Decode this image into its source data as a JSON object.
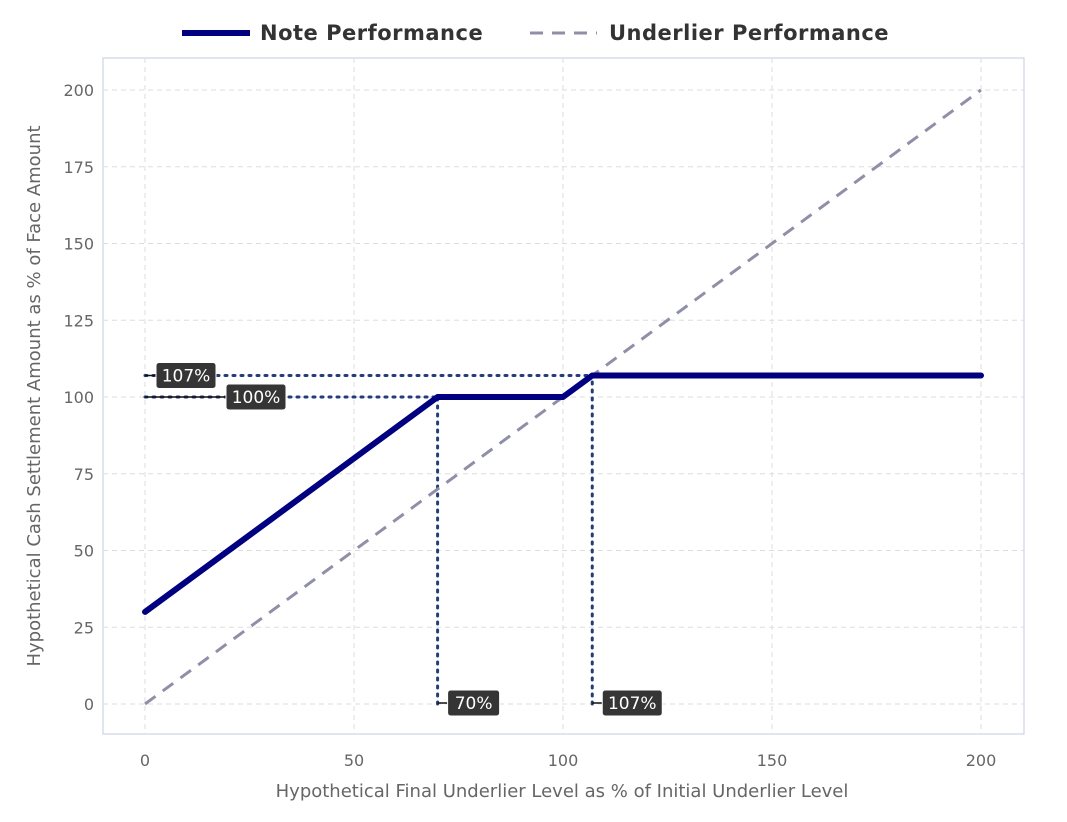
{
  "chart_data": {
    "type": "line",
    "title": "",
    "xlabel": "Hypothetical Final Underlier Level as % of Initial Underlier Level",
    "ylabel": "Hypothetical Cash Settlement Amount as % of Face Amount",
    "xlim": [
      -10,
      210
    ],
    "ylim": [
      -10,
      210
    ],
    "x_ticks": [
      0,
      50,
      100,
      150,
      200
    ],
    "y_ticks": [
      0,
      25,
      50,
      75,
      100,
      125,
      150,
      175,
      200
    ],
    "x_tick_labels": [
      "0",
      "50",
      "100",
      "150",
      "200"
    ],
    "y_tick_labels": [
      "0",
      "25",
      "50",
      "75",
      "100",
      "125",
      "150",
      "175",
      "200"
    ],
    "grid": true,
    "legend_position": "top",
    "series": [
      {
        "name": "Note Performance",
        "style": "solid",
        "color": "#000080",
        "x": [
          0,
          70,
          100,
          107,
          200
        ],
        "y": [
          30,
          100,
          100,
          107,
          107
        ]
      },
      {
        "name": "Underlier Performance",
        "style": "dashed",
        "color": "#8f8fa8",
        "x": [
          0,
          200
        ],
        "y": [
          0,
          200
        ]
      }
    ],
    "reference_lines": [
      {
        "orientation": "horizontal",
        "value": 107,
        "from": 0,
        "to": 200,
        "color": "#223d7a"
      },
      {
        "orientation": "horizontal",
        "value": 100,
        "from": 0,
        "to": 70,
        "color": "#223d7a"
      },
      {
        "orientation": "vertical",
        "value": 70,
        "from": 0,
        "to": 100,
        "color": "#223d7a"
      },
      {
        "orientation": "vertical",
        "value": 107,
        "from": 0,
        "to": 107,
        "color": "#223d7a"
      }
    ],
    "annotations": [
      {
        "text": "107%",
        "axis": "y",
        "value": 107
      },
      {
        "text": "100%",
        "axis": "y",
        "value": 100
      },
      {
        "text": "70%",
        "axis": "x",
        "value": 70
      },
      {
        "text": "107%",
        "axis": "x",
        "value": 107
      }
    ]
  }
}
